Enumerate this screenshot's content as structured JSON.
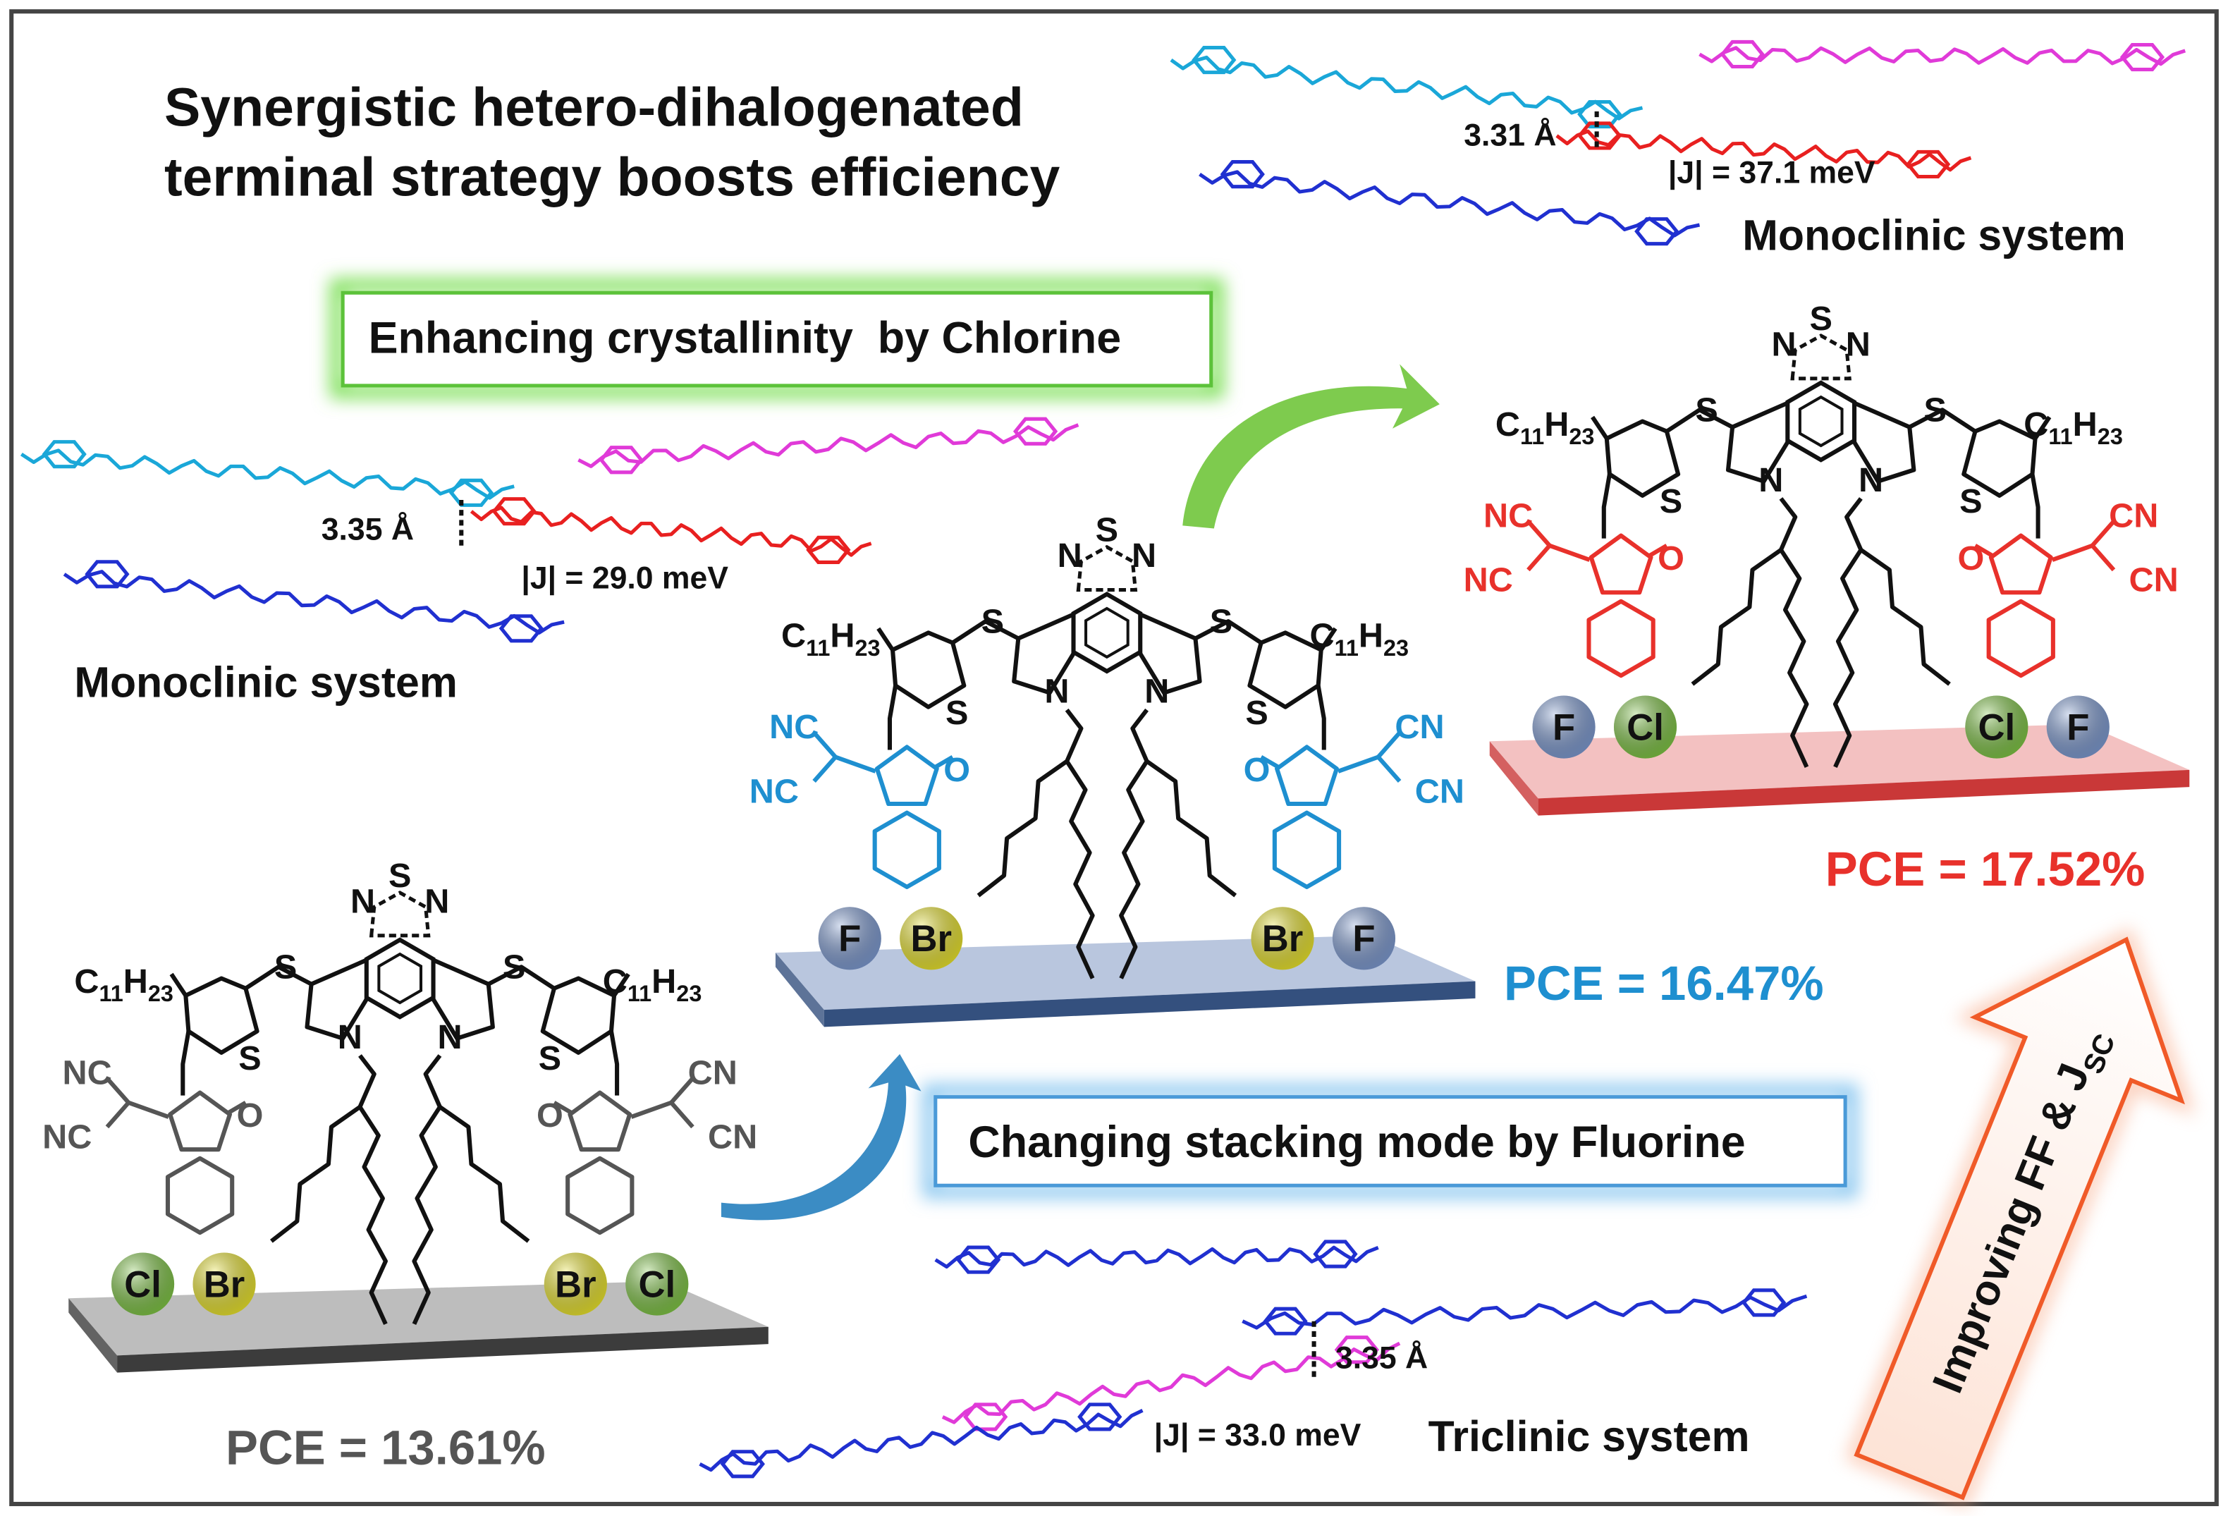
{
  "title": {
    "line1": "Synergistic hetero-dihalogenated",
    "line2": "terminal strategy boosts efficiency"
  },
  "boxes": {
    "chlorine": "Enhancing crystallinity  by Chlorine",
    "fluorine": "Changing stacking mode by Fluorine"
  },
  "crystal_top": {
    "distance": "3.31 Å",
    "coupling": "|J| = 37.1 meV",
    "system": "Monoclinic system"
  },
  "crystal_left": {
    "distance": "3.35 Å",
    "coupling": "|J| = 29.0 meV",
    "system": "Monoclinic system"
  },
  "crystal_bottom": {
    "distance": "3.35 Å",
    "coupling": "|J| = 33.0 meV",
    "system": "Triclinic system"
  },
  "atoms": {
    "n": "N",
    "s": "S",
    "o": "O",
    "nc": "NC",
    "cn": "CN",
    "alkyl": [
      "C",
      "11",
      "H",
      "23"
    ]
  },
  "molecules": [
    {
      "pce": "PCE = 13.61%",
      "halogens": [
        "Cl",
        "Br",
        "Br",
        "Cl"
      ],
      "color": "#555555",
      "platform_color": "#3c3c3c",
      "platform_top": "#bdbdbd"
    },
    {
      "pce": "PCE = 16.47%",
      "halogens": [
        "F",
        "Br",
        "Br",
        "F"
      ],
      "color": "#1e8fd0",
      "platform_color": "#34507e",
      "platform_top": "#b9c6de"
    },
    {
      "pce": "PCE = 17.52%",
      "halogens": [
        "F",
        "Cl",
        "Cl",
        "F"
      ],
      "color": "#e8312b",
      "platform_color": "#c93838",
      "platform_top": "#f3c1c1"
    }
  ],
  "halogen_colors": {
    "F": "#7b98cf",
    "Cl": "#7cc242",
    "Br": "#e7e12a"
  },
  "arrow_label": {
    "main": "Improving FF & J",
    "sub": "SC"
  },
  "colors": {
    "chlorine_box": "#6fcf4a",
    "fluorine_box": "#6cb4e8",
    "arrow": "#f05a28",
    "pce_gray": "#555555",
    "pce_blue": "#1e8fd0",
    "pce_red": "#e8312b",
    "ribbon_cyan": "#1aa7d8",
    "ribbon_magenta": "#e03ad8",
    "ribbon_red": "#e82020",
    "ribbon_blue": "#2030d0"
  }
}
